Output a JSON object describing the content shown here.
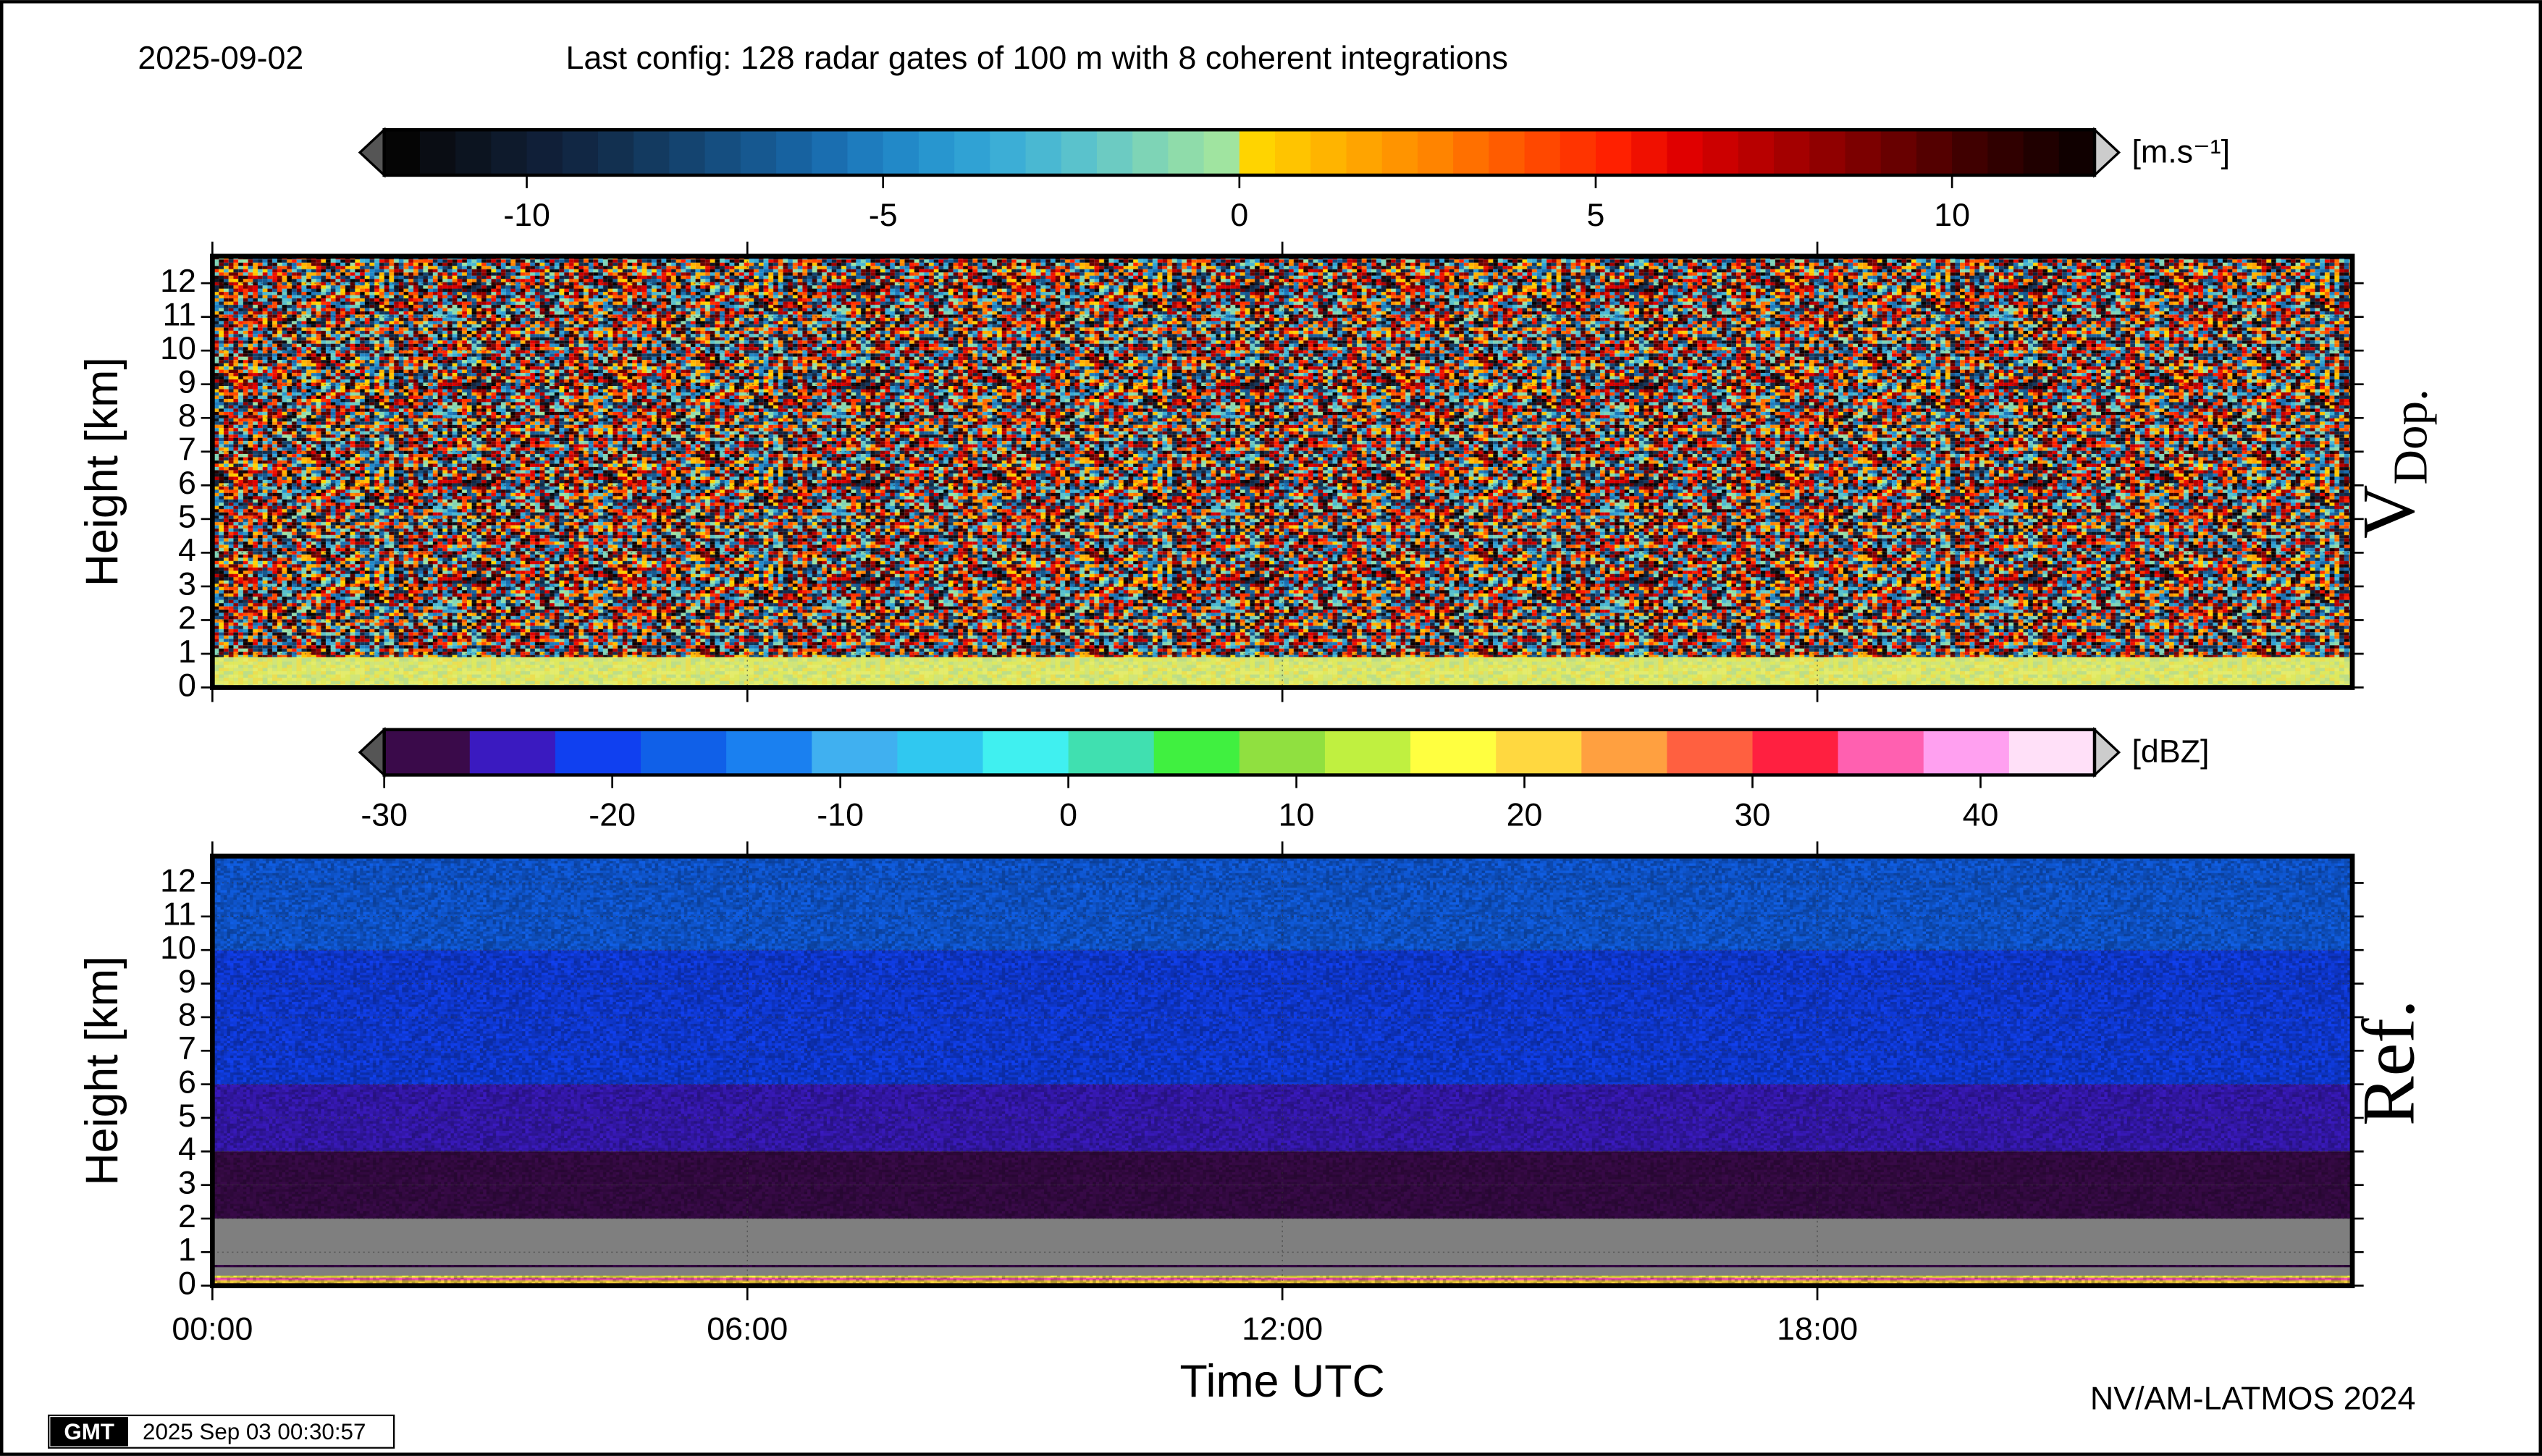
{
  "header": {
    "date": "2025-09-02",
    "title": "Last config: 128 radar gates of 100 m with 8 coherent integrations"
  },
  "chart_data": [
    {
      "type": "heatmap",
      "panel_label": "V",
      "panel_label_sub": "Dop.",
      "ylabel": "Height [km]",
      "xlim": [
        0,
        24
      ],
      "xticks": [
        0,
        6,
        12,
        18
      ],
      "ylim": [
        0,
        12.8
      ],
      "yticks": [
        0,
        1,
        2,
        3,
        4,
        5,
        6,
        7,
        8,
        9,
        10,
        11,
        12
      ],
      "grid": true,
      "y_edges": [
        0,
        0.9
      ],
      "values": [
        0
      ],
      "colorbar": {
        "label": "[m.s⁻¹]",
        "clim": [
          -12,
          12
        ],
        "ticks": [
          -10,
          -5,
          0,
          5,
          10
        ],
        "colors": [
          "#050505",
          "#0a0d14",
          "#0c1420",
          "#0e1a2c",
          "#101f38",
          "#112744",
          "#123050",
          "#133a60",
          "#144470",
          "#154e80",
          "#165890",
          "#1762a0",
          "#1a6eb0",
          "#1e7cbe",
          "#2289c8",
          "#2896cf",
          "#30a2d4",
          "#3caed6",
          "#4ab8d2",
          "#5ac2cc",
          "#6ccbc2",
          "#7ed4b6",
          "#8fdcaa",
          "#a0e4a0",
          "#ffd400",
          "#ffc400",
          "#ffb400",
          "#ffa400",
          "#ff9400",
          "#ff8400",
          "#ff7000",
          "#ff5c00",
          "#ff4800",
          "#ff3400",
          "#ff2000",
          "#f01000",
          "#e00000",
          "#cc0000",
          "#b80000",
          "#a40000",
          "#900000",
          "#7c0000",
          "#680000",
          "#540000",
          "#400000",
          "#300000",
          "#200000",
          "#100000"
        ]
      }
    },
    {
      "type": "heatmap",
      "panel_label": "Ref.",
      "ylabel": "Height [km]",
      "xlabel": "Time UTC",
      "xlim": [
        0,
        24
      ],
      "xticks": [
        {
          "value": 0,
          "label": "00:00"
        },
        {
          "value": 6,
          "label": "06:00"
        },
        {
          "value": 12,
          "label": "12:00"
        },
        {
          "value": 18,
          "label": "18:00"
        }
      ],
      "ylim": [
        0,
        12.8
      ],
      "yticks": [
        0,
        1,
        2,
        3,
        4,
        5,
        6,
        7,
        8,
        9,
        10,
        11,
        12
      ],
      "grid": true,
      "nodata_color": "#7f7f7f",
      "y_edges": [
        0,
        0.08,
        0.16,
        0.24,
        0.3,
        0.55,
        0.62,
        2,
        3,
        4,
        5,
        6,
        8,
        10,
        12.8
      ],
      "values": [
        26,
        20,
        34,
        18,
        null,
        -28,
        null,
        -29,
        -28,
        -26,
        -24,
        -21,
        -19,
        -18
      ],
      "colorbar": {
        "label": "[dBZ]",
        "clim": [
          -30,
          45
        ],
        "ticks": [
          -30,
          -20,
          -10,
          0,
          10,
          20,
          30,
          40
        ],
        "colors": [
          "#3a0a4a",
          "#3a1ac0",
          "#1040f0",
          "#1060e8",
          "#1a80f0",
          "#40b0f0",
          "#30c8f0",
          "#40f0f0",
          "#40e0b0",
          "#40f040",
          "#90e040",
          "#c0f040",
          "#ffff40",
          "#ffd840",
          "#ffa040",
          "#ff6040",
          "#ff2040",
          "#ff60b0",
          "#ffa0f0",
          "#ffe0f8"
        ]
      }
    }
  ],
  "footer": {
    "credit": "NV/AM-LATMOS 2024",
    "gmt_logo": "GMT",
    "timestamp": "2025 Sep 03 00:30:57"
  }
}
